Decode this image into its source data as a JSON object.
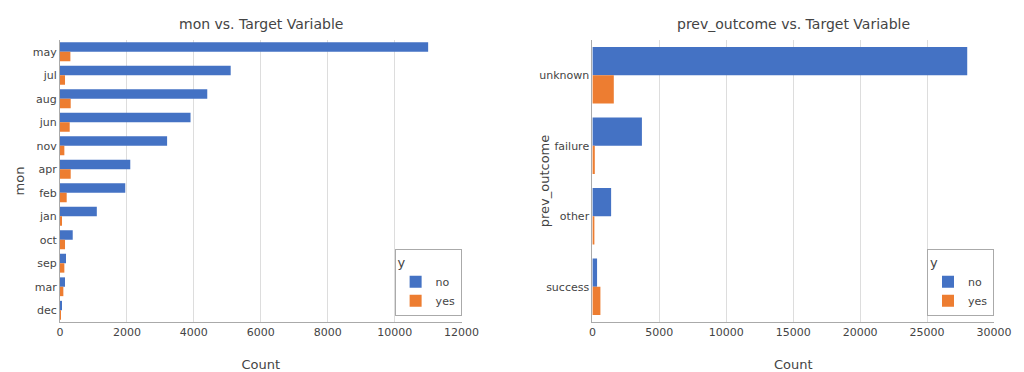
{
  "chart_data": [
    {
      "type": "bar",
      "orientation": "horizontal",
      "title": "mon vs. Target Variable",
      "xlabel": "Count",
      "ylabel": "mon",
      "categories": [
        "may",
        "jul",
        "aug",
        "jun",
        "nov",
        "apr",
        "feb",
        "jan",
        "oct",
        "sep",
        "mar",
        "dec"
      ],
      "series": [
        {
          "name": "no",
          "color": "#4472c4",
          "values": [
            11000,
            5100,
            4400,
            3900,
            3200,
            2100,
            1950,
            1100,
            380,
            180,
            150,
            60
          ]
        },
        {
          "name": "yes",
          "color": "#ed7d31",
          "values": [
            310,
            150,
            320,
            290,
            130,
            320,
            200,
            60,
            150,
            130,
            100,
            20
          ]
        }
      ],
      "legend_title": "y",
      "legend": "lower right",
      "grid": true,
      "xlim": [
        0,
        12000
      ],
      "xticks": [
        0,
        2000,
        4000,
        6000,
        8000,
        10000,
        12000
      ]
    },
    {
      "type": "bar",
      "orientation": "horizontal",
      "title": "prev_outcome vs. Target Variable",
      "xlabel": "Count",
      "ylabel": "prev_outcome",
      "categories": [
        "unknown",
        "failure",
        "other",
        "success"
      ],
      "series": [
        {
          "name": "no",
          "color": "#4472c4",
          "values": [
            28000,
            3700,
            1400,
            350
          ]
        },
        {
          "name": "yes",
          "color": "#ed7d31",
          "values": [
            1600,
            180,
            80,
            600
          ]
        }
      ],
      "legend_title": "y",
      "legend": "lower right",
      "grid": true,
      "xlim": [
        0,
        30000
      ],
      "xticks": [
        0,
        5000,
        10000,
        15000,
        20000,
        25000,
        30000
      ]
    }
  ]
}
